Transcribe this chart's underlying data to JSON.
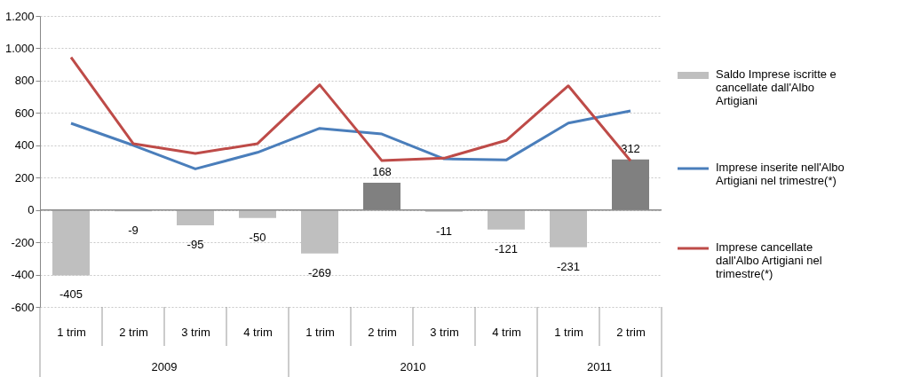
{
  "chart_data": {
    "type": "bar",
    "categories": [
      "1 trim",
      "2 trim",
      "3 trim",
      "4 trim",
      "1 trim",
      "2 trim",
      "3 trim",
      "4 trim",
      "1 trim",
      "2 trim"
    ],
    "series": [
      {
        "name": "Saldo Imprese iscritte e cancellate dall'Albo Artigiani",
        "color": "#bfbfbf",
        "colors": [
          "#bfbfbf",
          "#bfbfbf",
          "#bfbfbf",
          "#bfbfbf",
          "#bfbfbf",
          "#808080",
          "#bfbfbf",
          "#bfbfbf",
          "#bfbfbf",
          "#808080"
        ],
        "values": [
          -405,
          -9,
          -95,
          -50,
          -269,
          168,
          -11,
          -121,
          -231,
          312
        ],
        "value_labels": [
          "-405",
          "-9",
          "-95",
          "-50",
          "-269",
          "168",
          "-11",
          "-121",
          "-231",
          "312"
        ]
      },
      {
        "name": "Imprese inserite nell'Albo Artigiani nel trimestre(*)",
        "type": "line",
        "color": "#4a7ebb",
        "values": [
          536,
          400,
          254,
          356,
          505,
          470,
          316,
          309,
          537,
          613
        ]
      },
      {
        "name": "Imprese cancellate dall'Albo Artigiani nel trimestre(*)",
        "type": "line",
        "color": "#be4b48",
        "values": [
          944,
          410,
          349,
          410,
          774,
          305,
          320,
          430,
          768,
          304
        ]
      }
    ],
    "ylim": [
      -600,
      1200
    ],
    "yticks": [
      {
        "value": -600,
        "label": "-600"
      },
      {
        "value": -400,
        "label": "-400"
      },
      {
        "value": -200,
        "label": "-200"
      },
      0,
      200,
      400,
      600,
      800,
      {
        "value": 1000,
        "label": "1.000"
      },
      {
        "value": 1200,
        "label": "1.200"
      }
    ],
    "grid": "y",
    "legend": "right",
    "marker": "none",
    "line_style": "solid",
    "annotations": [
      "2009",
      "2010",
      "2011"
    ]
  }
}
